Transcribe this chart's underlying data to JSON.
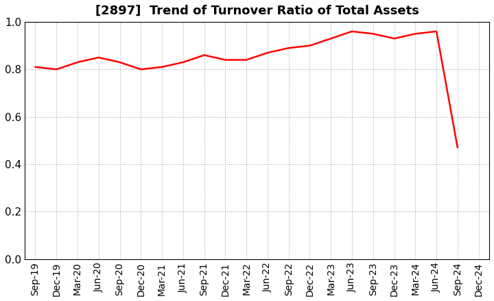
{
  "title": "[2897]  Trend of Turnover Ratio of Total Assets",
  "labels": [
    "Sep-19",
    "Dec-19",
    "Mar-20",
    "Jun-20",
    "Sep-20",
    "Dec-20",
    "Mar-21",
    "Jun-21",
    "Sep-21",
    "Dec-21",
    "Mar-22",
    "Jun-22",
    "Sep-22",
    "Dec-22",
    "Mar-23",
    "Jun-23",
    "Sep-23",
    "Dec-23",
    "Mar-24",
    "Jun-24",
    "Sep-24",
    "Dec-24"
  ],
  "values": [
    0.81,
    0.8,
    0.83,
    0.85,
    0.83,
    0.8,
    0.81,
    0.83,
    0.86,
    0.84,
    0.84,
    0.87,
    0.89,
    0.9,
    0.93,
    0.96,
    0.95,
    0.93,
    0.95,
    0.96,
    0.47,
    null
  ],
  "line_color": "#ff0000",
  "line_width": 1.8,
  "ylim": [
    0.0,
    1.0
  ],
  "yticks": [
    0.0,
    0.2,
    0.4,
    0.6,
    0.8,
    1.0
  ],
  "grid_color": "#aaaaaa",
  "bg_color": "#ffffff",
  "title_fontsize": 13,
  "tick_fontsize": 10,
  "ytick_fontsize": 11
}
